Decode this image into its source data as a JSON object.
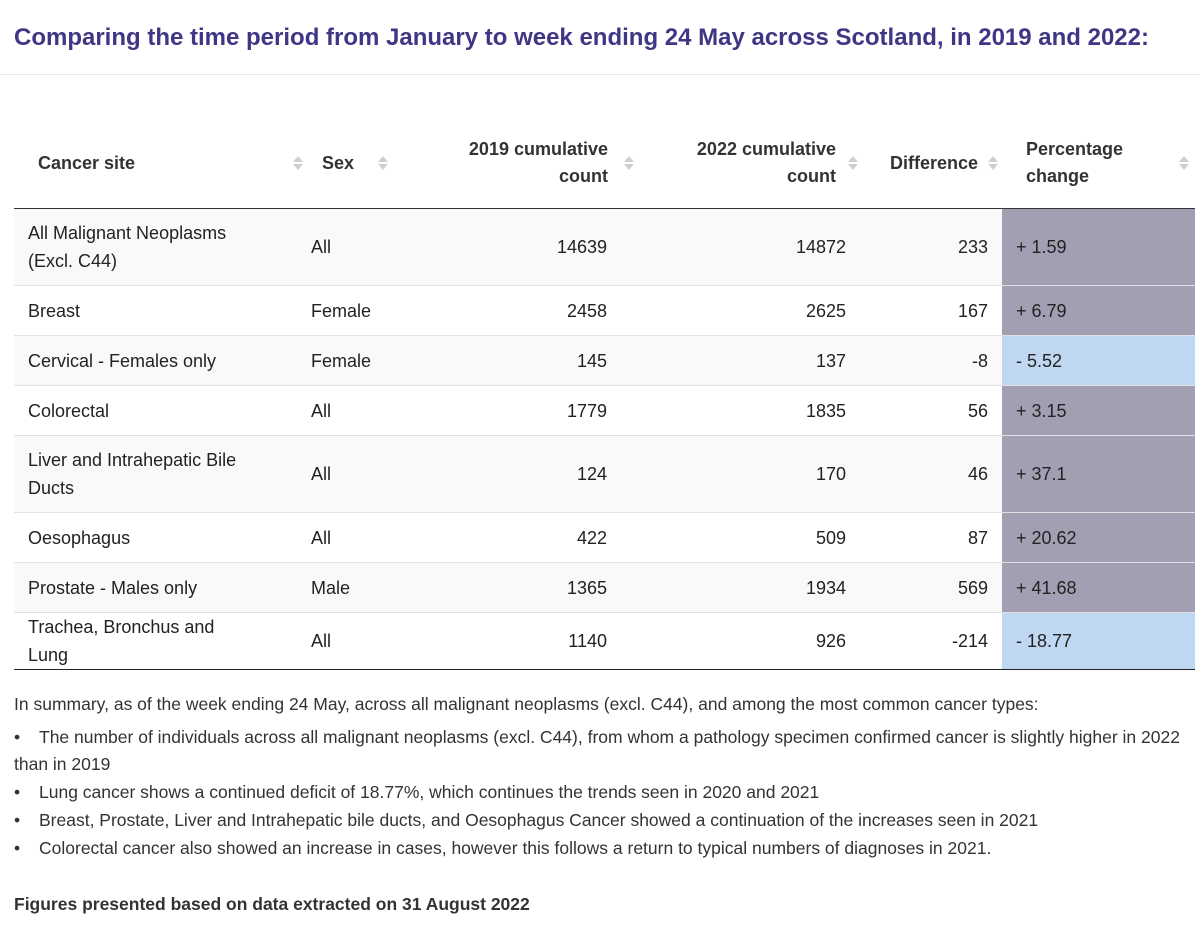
{
  "page": {
    "title": "Comparing the time period from January to week ending 24 May across Scotland, in 2019 and 2022:"
  },
  "table": {
    "columns": [
      {
        "key": "site",
        "label": "Cancer site"
      },
      {
        "key": "sex",
        "label": "Sex"
      },
      {
        "key": "c2019",
        "label": "2019 cumulative count"
      },
      {
        "key": "c2022",
        "label": "2022 cumulative count"
      },
      {
        "key": "diff",
        "label": "Difference"
      },
      {
        "key": "pct",
        "label": "Percentage change"
      }
    ],
    "rows": [
      {
        "site": "All Malignant Neoplasms (Excl. C44)",
        "sex": "All",
        "c2019": "14639",
        "c2022": "14872",
        "diff": "233",
        "pct": "+ 1.59",
        "trend": "up"
      },
      {
        "site": "Breast",
        "sex": "Female",
        "c2019": "2458",
        "c2022": "2625",
        "diff": "167",
        "pct": "+ 6.79",
        "trend": "up"
      },
      {
        "site": "Cervical - Females only",
        "sex": "Female",
        "c2019": "145",
        "c2022": "137",
        "diff": "-8",
        "pct": "- 5.52",
        "trend": "down"
      },
      {
        "site": "Colorectal",
        "sex": "All",
        "c2019": "1779",
        "c2022": "1835",
        "diff": "56",
        "pct": "+ 3.15",
        "trend": "up"
      },
      {
        "site": "Liver and Intrahepatic Bile Ducts",
        "sex": "All",
        "c2019": "124",
        "c2022": "170",
        "diff": "46",
        "pct": "+ 37.1",
        "trend": "up"
      },
      {
        "site": "Oesophagus",
        "sex": "All",
        "c2019": "422",
        "c2022": "509",
        "diff": "87",
        "pct": "+ 20.62",
        "trend": "up"
      },
      {
        "site": "Prostate - Males only",
        "sex": "Male",
        "c2019": "1365",
        "c2022": "1934",
        "diff": "569",
        "pct": "+ 41.68",
        "trend": "up"
      },
      {
        "site": "Trachea, Bronchus and Lung",
        "sex": "All",
        "c2019": "1140",
        "c2022": "926",
        "diff": "-214",
        "pct": "- 18.77",
        "trend": "down"
      }
    ],
    "colors": {
      "increase": "#a39fb3",
      "decrease": "#bfd7f1"
    }
  },
  "summary": {
    "intro": "In summary, as of the week ending 24 May, across all malignant neoplasms (excl. C44), and among the most common cancer types:",
    "bullets": [
      "The number of individuals across all malignant neoplasms (excl. C44), from whom a pathology specimen confirmed cancer is slightly higher in 2022 than in 2019",
      "Lung cancer shows a continued deficit of 18.77%, which continues the trends seen in 2020 and 2021",
      "Breast, Prostate, Liver and Intrahepatic bile ducts, and Oesophagus Cancer showed a continuation of the increases seen in 2021",
      "Colorectal cancer also showed an increase in cases, however this follows a return to typical numbers of diagnoses in 2021."
    ],
    "footer": "Figures presented based on data extracted on 31 August 2022"
  }
}
